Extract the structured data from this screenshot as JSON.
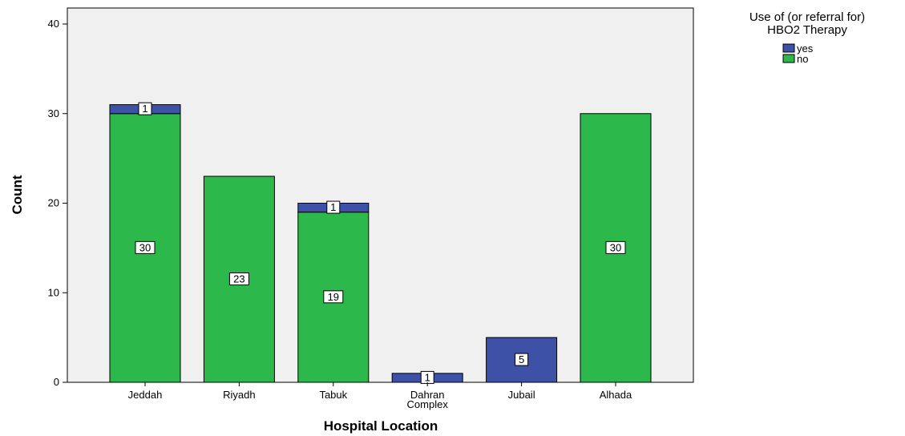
{
  "chart_data": {
    "type": "bar",
    "stacked": true,
    "categories": [
      "Jeddah",
      "Riyadh",
      "Tabuk",
      "Dahran\nComplex",
      "Jubail",
      "Alhada"
    ],
    "series": [
      {
        "name": "no",
        "values": [
          30,
          23,
          19,
          0,
          0,
          30
        ],
        "color": "#2db84c"
      },
      {
        "name": "yes",
        "values": [
          1,
          0,
          1,
          1,
          5,
          0
        ],
        "color": "#3d52a6"
      }
    ],
    "data_labels": {
      "no": [
        "30",
        "23",
        "19",
        "",
        "",
        "30"
      ],
      "yes": [
        "1",
        "",
        "1",
        "1",
        "5",
        ""
      ]
    },
    "xlabel": "Hospital Location",
    "ylabel": "Count",
    "ylim": [
      0,
      40
    ],
    "yticks": [
      0,
      10,
      20,
      30,
      40
    ],
    "legend": {
      "title_line1": "Use of (or referral for)",
      "title_line2": "HBO2 Therapy",
      "entries": [
        "yes",
        "no"
      ],
      "position": "top-right"
    },
    "plot_background": "#f0f0f0",
    "grid": false
  }
}
